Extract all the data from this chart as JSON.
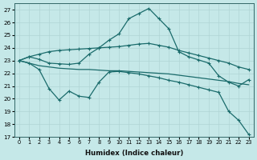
{
  "xlabel": "Humidex (Indice chaleur)",
  "bg_color": "#c5e8e8",
  "line_color": "#1a6b6b",
  "ylim": [
    17,
    27.5
  ],
  "xlim": [
    -0.5,
    23.5
  ],
  "yticks": [
    17,
    18,
    19,
    20,
    21,
    22,
    23,
    24,
    25,
    26,
    27
  ],
  "x_ticks": [
    0,
    1,
    2,
    3,
    4,
    5,
    6,
    7,
    8,
    9,
    10,
    11,
    12,
    13,
    14,
    15,
    16,
    17,
    18,
    19,
    20,
    21,
    22,
    23
  ],
  "curve_upper": {
    "x": [
      0,
      1,
      2,
      3,
      4,
      5,
      6,
      7,
      8,
      9,
      10,
      11,
      12,
      13,
      14,
      15,
      16,
      17,
      18,
      19,
      20,
      21,
      22,
      23
    ],
    "y": [
      23.0,
      23.3,
      23.5,
      23.7,
      23.8,
      23.85,
      23.9,
      23.95,
      24.0,
      24.05,
      24.1,
      24.2,
      24.3,
      24.35,
      24.2,
      24.05,
      23.8,
      23.6,
      23.4,
      23.2,
      23.0,
      22.8,
      22.5,
      22.3
    ],
    "markers": true
  },
  "curve_peak": {
    "x": [
      0,
      1,
      2,
      3,
      4,
      5,
      6,
      7,
      8,
      9,
      10,
      11,
      12,
      13,
      14,
      15,
      16,
      17,
      18,
      19,
      20,
      21,
      22,
      23
    ],
    "y": [
      23.0,
      23.3,
      23.1,
      22.8,
      22.75,
      22.7,
      22.8,
      23.5,
      24.0,
      24.6,
      25.1,
      26.3,
      26.7,
      27.1,
      26.3,
      25.5,
      23.7,
      23.3,
      23.05,
      22.8,
      21.8,
      21.3,
      21.0,
      21.5
    ],
    "markers": true
  },
  "curve_mid": {
    "x": [
      0,
      1,
      2,
      3,
      4,
      5,
      6,
      7,
      8,
      9,
      10,
      11,
      12,
      13,
      14,
      15,
      16,
      17,
      18,
      19,
      20,
      21,
      22,
      23
    ],
    "y": [
      23.0,
      22.8,
      22.6,
      22.5,
      22.4,
      22.35,
      22.3,
      22.3,
      22.25,
      22.2,
      22.2,
      22.15,
      22.1,
      22.05,
      22.0,
      21.95,
      21.85,
      21.75,
      21.65,
      21.55,
      21.45,
      21.35,
      21.2,
      21.1
    ],
    "markers": false
  },
  "curve_low": {
    "x": [
      0,
      1,
      2,
      3,
      4,
      5,
      6,
      7,
      8,
      9,
      10,
      11,
      12,
      13,
      14,
      15,
      16,
      17,
      18,
      19,
      20,
      21,
      22,
      23
    ],
    "y": [
      23.0,
      22.8,
      22.3,
      20.8,
      19.9,
      20.6,
      20.2,
      20.1,
      21.3,
      22.1,
      22.15,
      22.05,
      21.95,
      21.8,
      21.65,
      21.45,
      21.3,
      21.1,
      20.9,
      20.7,
      20.5,
      19.0,
      18.3,
      17.2
    ],
    "markers": true
  }
}
